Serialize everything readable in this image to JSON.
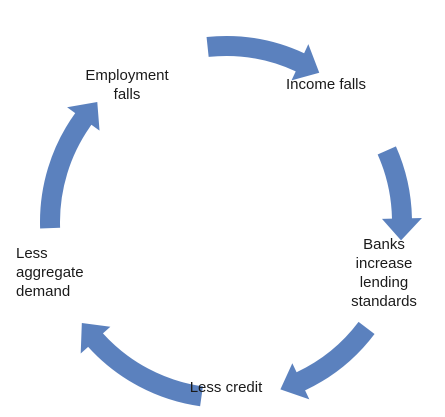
{
  "cycle": {
    "color": "#5b81be",
    "nodes": [
      {
        "lines": [
          "Employment",
          "falls"
        ]
      },
      {
        "lines": [
          "Income falls"
        ]
      },
      {
        "lines": [
          "Banks",
          "increase",
          "lending",
          "standards"
        ]
      },
      {
        "lines": [
          "Less credit"
        ]
      },
      {
        "lines": [
          "Less",
          "aggregate",
          "demand"
        ]
      }
    ]
  }
}
